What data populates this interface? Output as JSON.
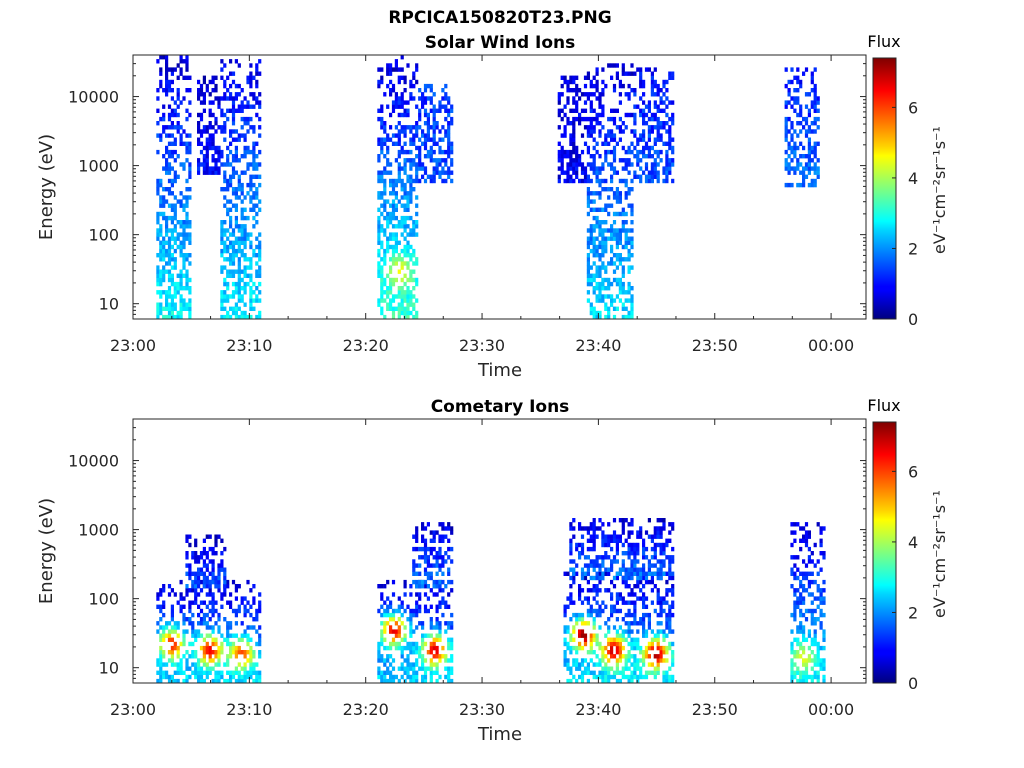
{
  "figure": {
    "title": "RPCICA150820T23.PNG"
  },
  "chart_data": [
    {
      "type": "heatmap",
      "title": "Solar Wind Ions",
      "xlabel": "Time",
      "ylabel": "Energy (eV)",
      "yscale": "log",
      "xlim_minutes": [
        0,
        63
      ],
      "ylim": [
        6,
        40000
      ],
      "x_ticks": [
        "23:00",
        "23:10",
        "23:20",
        "23:30",
        "23:40",
        "23:50",
        "00:00"
      ],
      "y_ticks": [
        "10",
        "100",
        "1000",
        "10000"
      ],
      "colorbar": {
        "title": "Flux",
        "label": "eV⁻¹cm⁻²sr⁻¹s⁻¹",
        "range": [
          0,
          7.4
        ],
        "ticks": [
          "0",
          "2",
          "4",
          "6"
        ],
        "colormap": "jet"
      },
      "bursts": [
        {
          "t_start": 2.0,
          "t_end": 5.0,
          "e_min": 6,
          "e_max": 40000,
          "low_flux": 2.8,
          "high_flux": 0.6
        },
        {
          "t_start": 5.5,
          "t_end": 7.5,
          "e_min": 700,
          "e_max": 20000,
          "low_flux": 1.0,
          "high_flux": 0.6
        },
        {
          "t_start": 7.5,
          "t_end": 11.0,
          "e_min": 6,
          "e_max": 35000,
          "low_flux": 2.7,
          "high_flux": 0.7
        },
        {
          "t_start": 21.0,
          "t_end": 24.5,
          "e_min": 6,
          "e_max": 40000,
          "low_flux": 3.2,
          "high_flux": 0.5
        },
        {
          "t_start": 24.5,
          "t_end": 27.5,
          "e_min": 600,
          "e_max": 15000,
          "low_flux": 1.5,
          "high_flux": 1.3
        },
        {
          "t_start": 36.5,
          "t_end": 39.0,
          "e_min": 600,
          "e_max": 20000,
          "low_flux": 0.8,
          "high_flux": 0.7
        },
        {
          "t_start": 39.0,
          "t_end": 43.0,
          "e_min": 6,
          "e_max": 30000,
          "low_flux": 2.6,
          "high_flux": 0.6
        },
        {
          "t_start": 43.0,
          "t_end": 46.5,
          "e_min": 600,
          "e_max": 25000,
          "low_flux": 1.5,
          "high_flux": 1.0
        },
        {
          "t_start": 56.0,
          "t_end": 59.0,
          "e_min": 500,
          "e_max": 25000,
          "low_flux": 1.8,
          "high_flux": 1.0
        }
      ],
      "hotspots": [
        {
          "t": 22.8,
          "e": 30,
          "flux": 4.6
        }
      ]
    },
    {
      "type": "heatmap",
      "title": "Cometary Ions",
      "xlabel": "Time",
      "ylabel": "Energy (eV)",
      "yscale": "log",
      "xlim_minutes": [
        0,
        63
      ],
      "ylim": [
        6,
        40000
      ],
      "x_ticks": [
        "23:00",
        "23:10",
        "23:20",
        "23:30",
        "23:40",
        "23:50",
        "00:00"
      ],
      "y_ticks": [
        "10",
        "100",
        "1000",
        "10000"
      ],
      "colorbar": {
        "title": "Flux",
        "label": "eV⁻¹cm⁻²sr⁻¹s⁻¹",
        "range": [
          0,
          7.4
        ],
        "ticks": [
          "0",
          "2",
          "4",
          "6"
        ],
        "colormap": "jet"
      },
      "bursts": [
        {
          "t_start": 2.0,
          "t_end": 11.0,
          "e_min": 6,
          "e_max": 200,
          "low_flux": 2.5,
          "high_flux": 0.6
        },
        {
          "t_start": 4.5,
          "t_end": 8.0,
          "e_min": 150,
          "e_max": 900,
          "low_flux": 1.5,
          "high_flux": 0.5
        },
        {
          "t_start": 21.0,
          "t_end": 27.5,
          "e_min": 6,
          "e_max": 200,
          "low_flux": 2.5,
          "high_flux": 0.6
        },
        {
          "t_start": 24.0,
          "t_end": 27.5,
          "e_min": 150,
          "e_max": 1200,
          "low_flux": 1.8,
          "high_flux": 0.6
        },
        {
          "t_start": 37.0,
          "t_end": 46.5,
          "e_min": 6,
          "e_max": 250,
          "low_flux": 2.6,
          "high_flux": 0.6
        },
        {
          "t_start": 37.5,
          "t_end": 46.5,
          "e_min": 200,
          "e_max": 1500,
          "low_flux": 1.8,
          "high_flux": 0.6
        },
        {
          "t_start": 56.5,
          "t_end": 59.5,
          "e_min": 6,
          "e_max": 1200,
          "low_flux": 2.6,
          "high_flux": 0.6
        }
      ],
      "hotspots": [
        {
          "t": 3.2,
          "e": 22,
          "flux": 6.4
        },
        {
          "t": 6.5,
          "e": 18,
          "flux": 6.6
        },
        {
          "t": 9.2,
          "e": 16,
          "flux": 6.0
        },
        {
          "t": 22.3,
          "e": 35,
          "flux": 6.7
        },
        {
          "t": 25.8,
          "e": 18,
          "flux": 6.8
        },
        {
          "t": 38.6,
          "e": 30,
          "flux": 7.3
        },
        {
          "t": 41.2,
          "e": 18,
          "flux": 7.0
        },
        {
          "t": 44.8,
          "e": 16,
          "flux": 7.2
        },
        {
          "t": 57.5,
          "e": 14,
          "flux": 4.5
        }
      ]
    }
  ]
}
